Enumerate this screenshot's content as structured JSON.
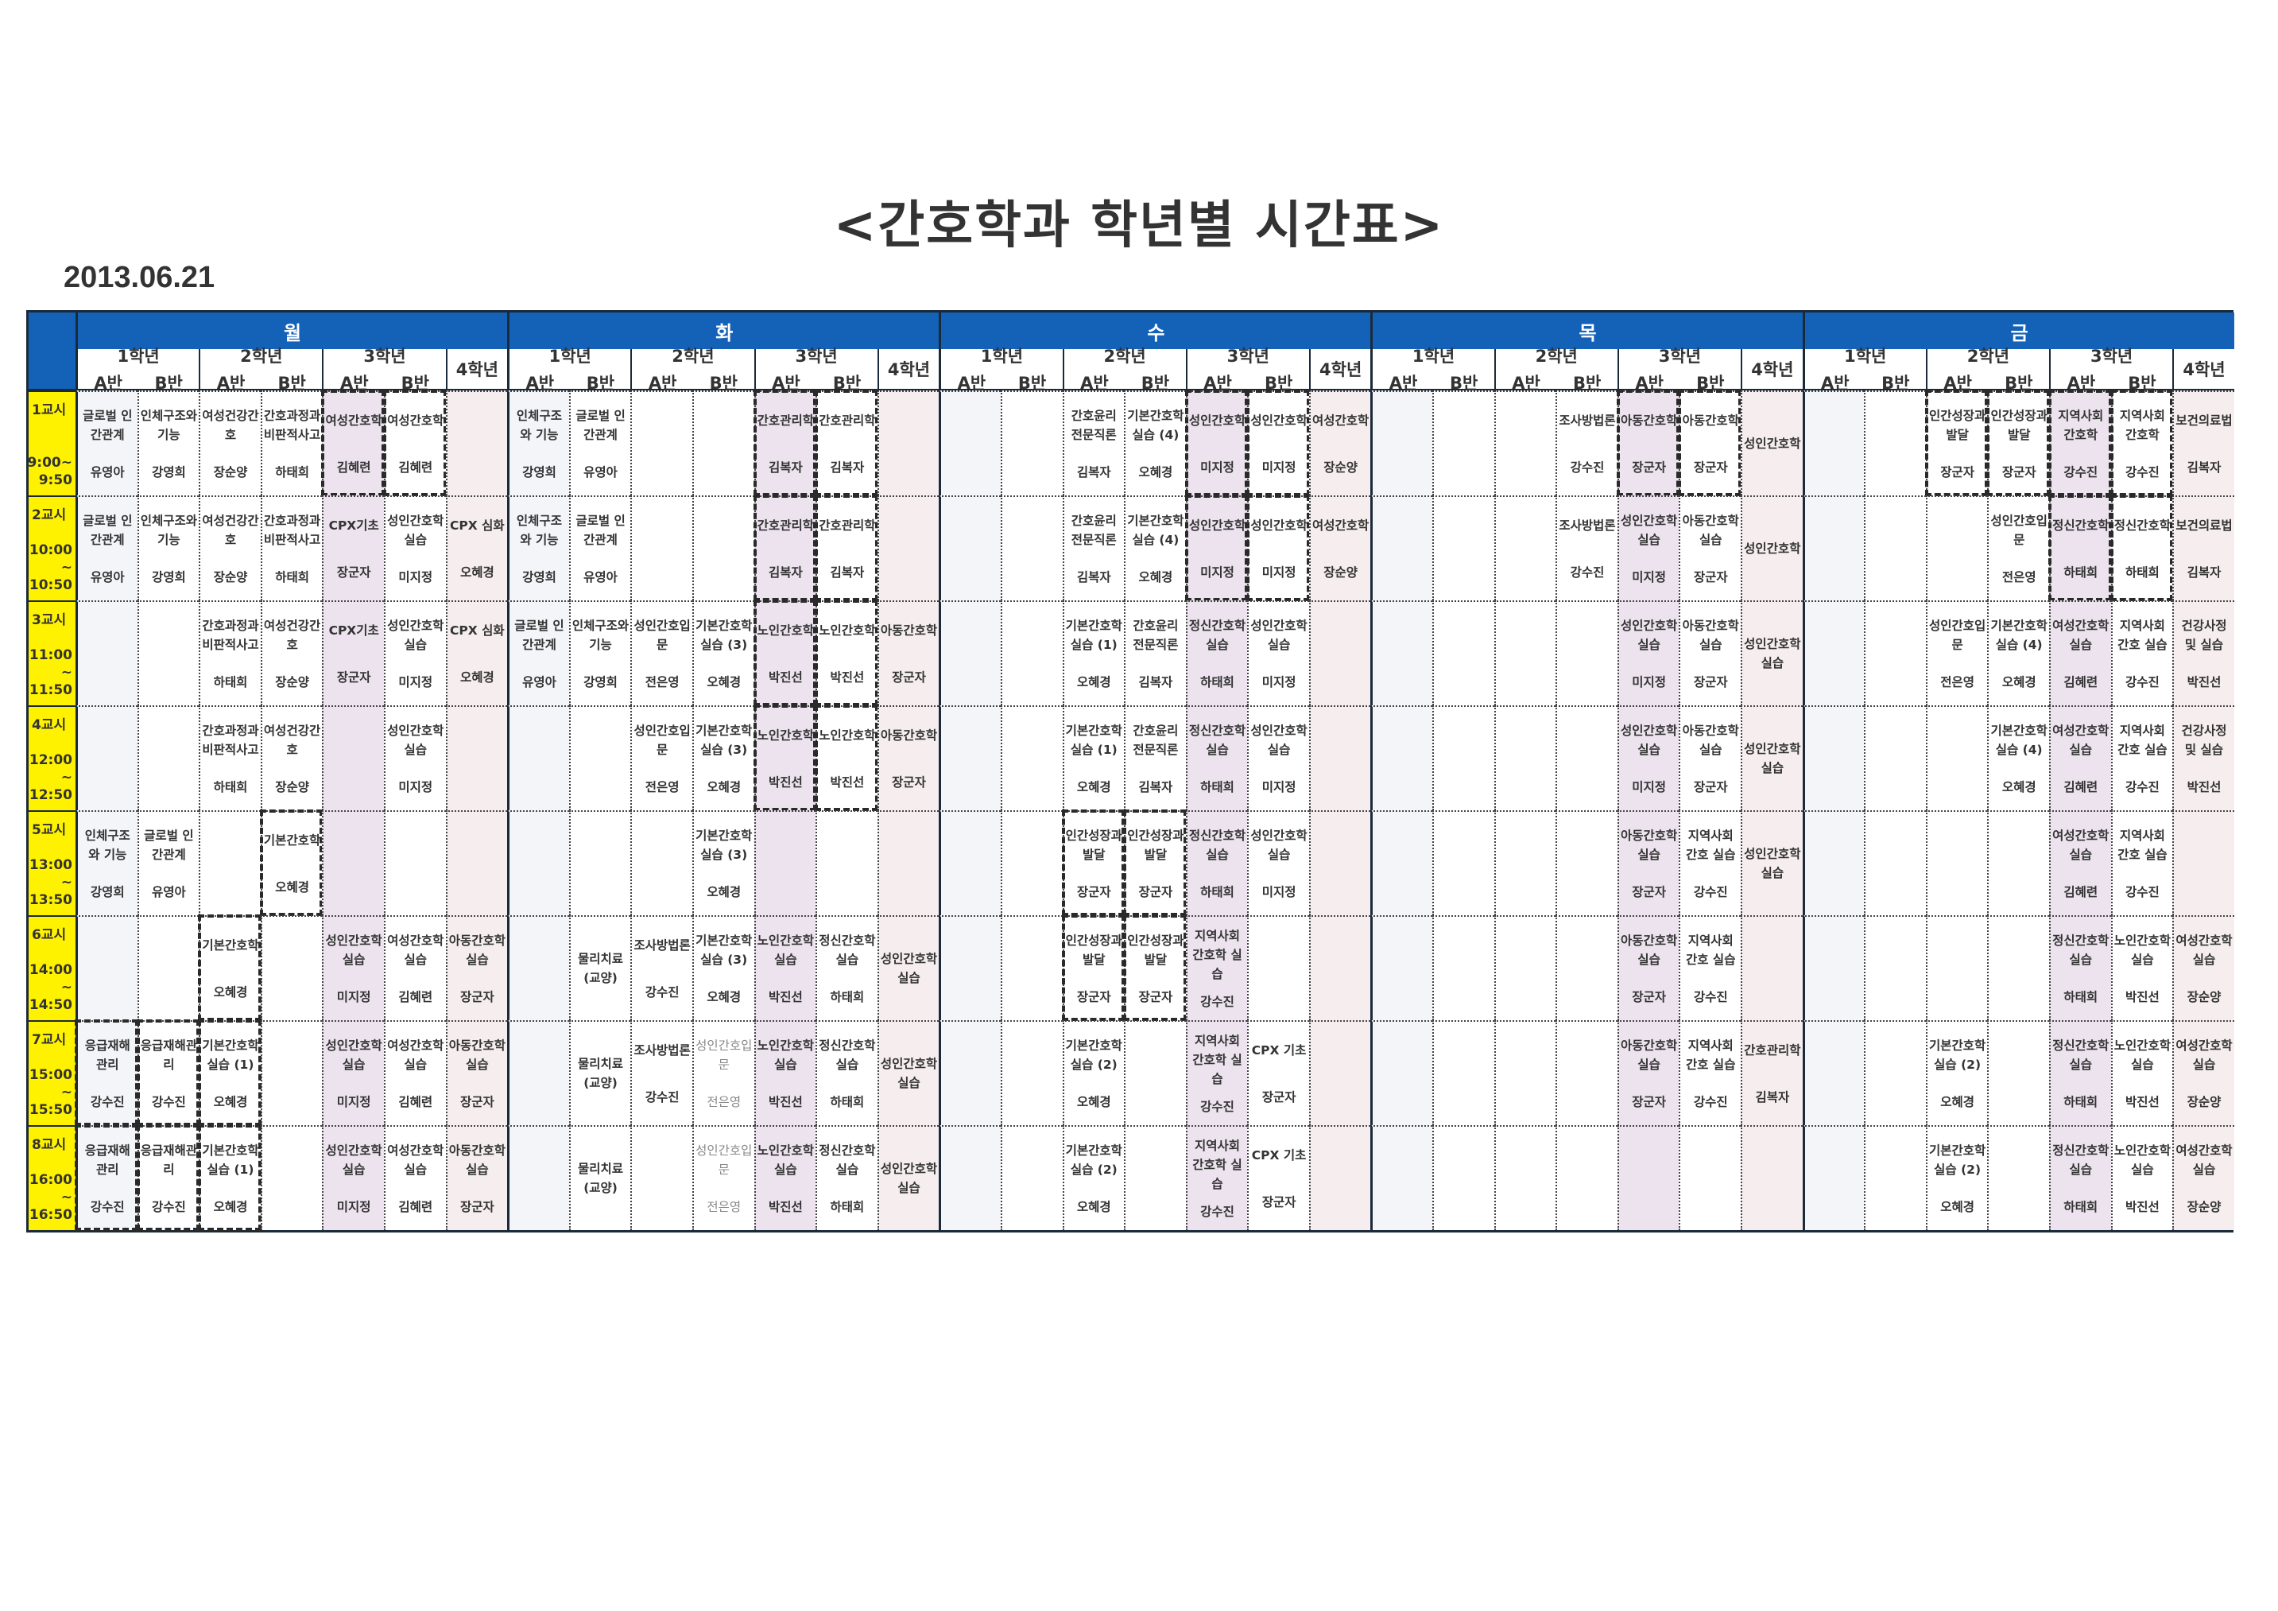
{
  "title": "<간호학과 학년별 시간표>",
  "date": "2013.06.21",
  "colors": {
    "header_blue": "#1462b8",
    "period_yellow": "#fff200",
    "grade3a_tint": "#ece3ee",
    "grade4_tint": "#f6eeee"
  },
  "grades": [
    {
      "label": "1학년",
      "classes": [
        "A반",
        "B반"
      ]
    },
    {
      "label": "2학년",
      "classes": [
        "A반",
        "B반"
      ]
    },
    {
      "label": "3학년",
      "classes": [
        "A반",
        "B반"
      ]
    },
    {
      "label": "4학년",
      "classes": []
    }
  ],
  "periods": [
    {
      "label": "1교시",
      "times": [
        "9:00~",
        "9:50"
      ]
    },
    {
      "label": "2교시",
      "times": [
        "10:00",
        "~",
        "10:50"
      ]
    },
    {
      "label": "3교시",
      "times": [
        "11:00",
        "~",
        "11:50"
      ]
    },
    {
      "label": "4교시",
      "times": [
        "12:00",
        "~",
        "12:50"
      ]
    },
    {
      "label": "5교시",
      "times": [
        "13:00",
        "~",
        "13:50"
      ]
    },
    {
      "label": "6교시",
      "times": [
        "14:00",
        "~",
        "14:50"
      ]
    },
    {
      "label": "7교시",
      "times": [
        "15:00",
        "~",
        "15:50"
      ]
    },
    {
      "label": "8교시",
      "times": [
        "16:00",
        "~",
        "16:50"
      ]
    }
  ],
  "days": [
    {
      "name": "월",
      "rows": [
        [
          {
            "subject": "글로벌 인간관계",
            "teacher": "유영아"
          },
          {
            "subject": "인체구조와 기능",
            "teacher": "강영희"
          },
          {
            "subject": "여성건강간호",
            "teacher": "장순양"
          },
          {
            "subject": "간호과정과 비판적사고",
            "teacher": "하태희"
          },
          {
            "subject": "여성간호학",
            "teacher": "김혜련",
            "boxed": true
          },
          {
            "subject": "여성간호학",
            "teacher": "김혜련",
            "boxed": true
          },
          null
        ],
        [
          {
            "subject": "글로벌 인간관계",
            "teacher": "유영아"
          },
          {
            "subject": "인체구조와 기능",
            "teacher": "강영희"
          },
          {
            "subject": "여성건강간호",
            "teacher": "장순양"
          },
          {
            "subject": "간호과정과 비판적사고",
            "teacher": "하태희"
          },
          {
            "subject": "CPX기초",
            "teacher": "장군자"
          },
          {
            "subject": "성인간호학 실습",
            "teacher": "미지정"
          },
          {
            "subject": "CPX 심화",
            "teacher": "오혜경"
          }
        ],
        [
          null,
          null,
          {
            "subject": "간호과정과 비판적사고",
            "teacher": "하태희"
          },
          {
            "subject": "여성건강간호",
            "teacher": "장순양"
          },
          {
            "subject": "CPX기초",
            "teacher": "장군자"
          },
          {
            "subject": "성인간호학 실습",
            "teacher": "미지정"
          },
          {
            "subject": "CPX 심화",
            "teacher": "오혜경"
          }
        ],
        [
          null,
          null,
          {
            "subject": "간호과정과 비판적사고",
            "teacher": "하태희"
          },
          {
            "subject": "여성건강간호",
            "teacher": "장순양"
          },
          null,
          {
            "subject": "성인간호학 실습",
            "teacher": "미지정"
          },
          null
        ],
        [
          {
            "subject": "인체구조와 기능",
            "teacher": "강영희"
          },
          {
            "subject": "글로벌 인간관계",
            "teacher": "유영아"
          },
          null,
          {
            "subject": "기본간호학",
            "teacher": "오혜경",
            "boxed": true
          },
          null,
          null,
          null
        ],
        [
          null,
          null,
          {
            "subject": "기본간호학",
            "teacher": "오혜경",
            "boxed": true
          },
          null,
          {
            "subject": "성인간호학 실습",
            "teacher": "미지정"
          },
          {
            "subject": "여성간호학 실습",
            "teacher": "김혜련"
          },
          {
            "subject": "아동간호학 실습",
            "teacher": "장군자"
          }
        ],
        [
          {
            "subject": "응급재해관리",
            "teacher": "강수진",
            "boxed": true
          },
          {
            "subject": "응급재해관리",
            "teacher": "강수진",
            "boxed": true
          },
          {
            "subject": "기본간호학 실습 (1)",
            "teacher": "오혜경",
            "boxed": true
          },
          null,
          {
            "subject": "성인간호학 실습",
            "teacher": "미지정"
          },
          {
            "subject": "여성간호학 실습",
            "teacher": "김혜련"
          },
          {
            "subject": "아동간호학 실습",
            "teacher": "장군자"
          }
        ],
        [
          {
            "subject": "응급재해관리",
            "teacher": "강수진",
            "boxed": true
          },
          {
            "subject": "응급재해관리",
            "teacher": "강수진",
            "boxed": true
          },
          {
            "subject": "기본간호학 실습 (1)",
            "teacher": "오혜경",
            "boxed": true
          },
          null,
          {
            "subject": "성인간호학 실습",
            "teacher": "미지정"
          },
          {
            "subject": "여성간호학 실습",
            "teacher": "김혜련"
          },
          {
            "subject": "아동간호학 실습",
            "teacher": "장군자"
          }
        ]
      ]
    },
    {
      "name": "화",
      "rows": [
        [
          {
            "subject": "인체구조와 기능",
            "teacher": "강영희"
          },
          {
            "subject": "글로벌 인간관계",
            "teacher": "유영아"
          },
          null,
          null,
          {
            "subject": "간호관리학",
            "teacher": "김복자",
            "boxed": true
          },
          {
            "subject": "간호관리학",
            "teacher": "김복자",
            "boxed": true
          },
          null
        ],
        [
          {
            "subject": "인체구조와 기능",
            "teacher": "강영희"
          },
          {
            "subject": "글로벌 인간관계",
            "teacher": "유영아"
          },
          null,
          null,
          {
            "subject": "간호관리학",
            "teacher": "김복자",
            "boxed": true
          },
          {
            "subject": "간호관리학",
            "teacher": "김복자",
            "boxed": true
          },
          null
        ],
        [
          {
            "subject": "글로벌 인간관계",
            "teacher": "유영아"
          },
          {
            "subject": "인체구조와 기능",
            "teacher": "강영희"
          },
          {
            "subject": "성인간호입문",
            "teacher": "전은영"
          },
          {
            "subject": "기본간호학 실습 (3)",
            "teacher": "오혜경"
          },
          {
            "subject": "노인간호학",
            "teacher": "박진선",
            "boxed": true
          },
          {
            "subject": "노인간호학",
            "teacher": "박진선",
            "boxed": true
          },
          {
            "subject": "아동간호학",
            "teacher": "장군자"
          }
        ],
        [
          null,
          null,
          {
            "subject": "성인간호입문",
            "teacher": "전은영"
          },
          {
            "subject": "기본간호학 실습 (3)",
            "teacher": "오혜경"
          },
          {
            "subject": "노인간호학",
            "teacher": "박진선",
            "boxed": true
          },
          {
            "subject": "노인간호학",
            "teacher": "박진선",
            "boxed": true
          },
          {
            "subject": "아동간호학",
            "teacher": "장군자"
          }
        ],
        [
          null,
          null,
          null,
          {
            "subject": "기본간호학 실습 (3)",
            "teacher": "오혜경"
          },
          null,
          null,
          null
        ],
        [
          null,
          {
            "subject": "물리치료 (교양)",
            "teacher": ""
          },
          {
            "subject": "조사방법론",
            "teacher": "강수진"
          },
          {
            "subject": "기본간호학 실습 (3)",
            "teacher": "오혜경"
          },
          {
            "subject": "노인간호학 실습",
            "teacher": "박진선"
          },
          {
            "subject": "정신간호학 실습",
            "teacher": "하태희"
          },
          {
            "subject": "성인간호학 실습",
            "teacher": ""
          }
        ],
        [
          null,
          {
            "subject": "물리치료 (교양)",
            "teacher": ""
          },
          {
            "subject": "조사방법론",
            "teacher": "강수진"
          },
          {
            "subject": "성인간호입문",
            "teacher": "전은영",
            "faint": true
          },
          {
            "subject": "노인간호학 실습",
            "teacher": "박진선"
          },
          {
            "subject": "정신간호학 실습",
            "teacher": "하태희"
          },
          {
            "subject": "성인간호학 실습",
            "teacher": ""
          }
        ],
        [
          null,
          {
            "subject": "물리치료 (교양)",
            "teacher": ""
          },
          null,
          {
            "subject": "성인간호입문",
            "teacher": "전은영",
            "faint": true
          },
          {
            "subject": "노인간호학 실습",
            "teacher": "박진선"
          },
          {
            "subject": "정신간호학 실습",
            "teacher": "하태희"
          },
          {
            "subject": "성인간호학 실습",
            "teacher": ""
          }
        ]
      ]
    },
    {
      "name": "수",
      "rows": [
        [
          null,
          null,
          {
            "subject": "간호윤리 전문직론",
            "teacher": "김복자"
          },
          {
            "subject": "기본간호학 실습 (4)",
            "teacher": "오혜경"
          },
          {
            "subject": "성인간호학",
            "teacher": "미지정",
            "boxed": true
          },
          {
            "subject": "성인간호학",
            "teacher": "미지정",
            "boxed": true
          },
          {
            "subject": "여성간호학",
            "teacher": "장순양"
          }
        ],
        [
          null,
          null,
          {
            "subject": "간호윤리 전문직론",
            "teacher": "김복자"
          },
          {
            "subject": "기본간호학 실습 (4)",
            "teacher": "오혜경"
          },
          {
            "subject": "성인간호학",
            "teacher": "미지정",
            "boxed": true
          },
          {
            "subject": "성인간호학",
            "teacher": "미지정",
            "boxed": true
          },
          {
            "subject": "여성간호학",
            "teacher": "장순양"
          }
        ],
        [
          null,
          null,
          {
            "subject": "기본간호학 실습 (1)",
            "teacher": "오혜경"
          },
          {
            "subject": "간호윤리 전문직론",
            "teacher": "김복자"
          },
          {
            "subject": "정신간호학 실습",
            "teacher": "하태희"
          },
          {
            "subject": "성인간호학 실습",
            "teacher": "미지정"
          },
          null
        ],
        [
          null,
          null,
          {
            "subject": "기본간호학 실습 (1)",
            "teacher": "오혜경"
          },
          {
            "subject": "간호윤리 전문직론",
            "teacher": "김복자"
          },
          {
            "subject": "정신간호학 실습",
            "teacher": "하태희"
          },
          {
            "subject": "성인간호학 실습",
            "teacher": "미지정"
          },
          null
        ],
        [
          null,
          null,
          {
            "subject": "인간성장과 발달",
            "teacher": "장군자",
            "boxed": true
          },
          {
            "subject": "인간성장과 발달",
            "teacher": "장군자",
            "boxed": true
          },
          {
            "subject": "정신간호학 실습",
            "teacher": "하태희"
          },
          {
            "subject": "성인간호학 실습",
            "teacher": "미지정"
          },
          null
        ],
        [
          null,
          null,
          {
            "subject": "인간성장과 발달",
            "teacher": "장군자",
            "boxed": true
          },
          {
            "subject": "인간성장과 발달",
            "teacher": "장군자",
            "boxed": true
          },
          {
            "subject": "지역사회 간호학 실습",
            "teacher": "강수진"
          },
          null,
          null
        ],
        [
          null,
          null,
          {
            "subject": "기본간호학 실습 (2)",
            "teacher": "오혜경"
          },
          null,
          {
            "subject": "지역사회 간호학 실습",
            "teacher": "강수진"
          },
          {
            "subject": "CPX 기초",
            "teacher": "장군자"
          },
          null
        ],
        [
          null,
          null,
          {
            "subject": "기본간호학 실습 (2)",
            "teacher": "오혜경"
          },
          null,
          {
            "subject": "지역사회 간호학 실습",
            "teacher": "강수진"
          },
          {
            "subject": "CPX 기초",
            "teacher": "장군자"
          },
          null
        ]
      ]
    },
    {
      "name": "목",
      "rows": [
        [
          null,
          null,
          null,
          {
            "subject": "조사방법론",
            "teacher": "강수진"
          },
          {
            "subject": "아동간호학",
            "teacher": "장군자",
            "boxed": true
          },
          {
            "subject": "아동간호학",
            "teacher": "장군자",
            "boxed": true
          },
          {
            "subject": "성인간호학",
            "teacher": ""
          }
        ],
        [
          null,
          null,
          null,
          {
            "subject": "조사방법론",
            "teacher": "강수진"
          },
          {
            "subject": "성인간호학 실습",
            "teacher": "미지정"
          },
          {
            "subject": "아동간호학 실습",
            "teacher": "장군자"
          },
          {
            "subject": "성인간호학",
            "teacher": ""
          }
        ],
        [
          null,
          null,
          null,
          null,
          {
            "subject": "성인간호학 실습",
            "teacher": "미지정"
          },
          {
            "subject": "아동간호학 실습",
            "teacher": "장군자"
          },
          {
            "subject": "성인간호학 실습",
            "teacher": ""
          }
        ],
        [
          null,
          null,
          null,
          null,
          {
            "subject": "성인간호학 실습",
            "teacher": "미지정"
          },
          {
            "subject": "아동간호학 실습",
            "teacher": "장군자"
          },
          {
            "subject": "성인간호학 실습",
            "teacher": ""
          }
        ],
        [
          null,
          null,
          null,
          null,
          {
            "subject": "아동간호학 실습",
            "teacher": "장군자"
          },
          {
            "subject": "지역사회 간호 실습",
            "teacher": "강수진"
          },
          {
            "subject": "성인간호학 실습",
            "teacher": ""
          }
        ],
        [
          null,
          null,
          null,
          null,
          {
            "subject": "아동간호학 실습",
            "teacher": "장군자"
          },
          {
            "subject": "지역사회 간호 실습",
            "teacher": "강수진"
          },
          null
        ],
        [
          null,
          null,
          null,
          null,
          {
            "subject": "아동간호학 실습",
            "teacher": "장군자"
          },
          {
            "subject": "지역사회 간호 실습",
            "teacher": "강수진"
          },
          {
            "subject": "간호관리학",
            "teacher": "김복자"
          }
        ],
        [
          null,
          null,
          null,
          null,
          null,
          null,
          null
        ]
      ]
    },
    {
      "name": "금",
      "rows": [
        [
          null,
          null,
          {
            "subject": "인간성장과 발달",
            "teacher": "장군자",
            "boxed": true
          },
          {
            "subject": "인간성장과 발달",
            "teacher": "장군자",
            "boxed": true
          },
          {
            "subject": "지역사회 간호학",
            "teacher": "강수진",
            "boxed": true
          },
          {
            "subject": "지역사회 간호학",
            "teacher": "강수진",
            "boxed": true
          },
          {
            "subject": "보건의료법",
            "teacher": "김복자"
          }
        ],
        [
          null,
          null,
          null,
          {
            "subject": "성인간호입문",
            "teacher": "전은영"
          },
          {
            "subject": "정신간호학",
            "teacher": "하태희",
            "boxed": true
          },
          {
            "subject": "정신간호학",
            "teacher": "하태희",
            "boxed": true
          },
          {
            "subject": "보건의료법",
            "teacher": "김복자"
          }
        ],
        [
          null,
          null,
          {
            "subject": "성인간호입문",
            "teacher": "전은영"
          },
          {
            "subject": "기본간호학 실습 (4)",
            "teacher": "오혜경"
          },
          {
            "subject": "여성간호학 실습",
            "teacher": "김혜련"
          },
          {
            "subject": "지역사회 간호 실습",
            "teacher": "강수진"
          },
          {
            "subject": "건강사정 및 실습",
            "teacher": "박진선"
          }
        ],
        [
          null,
          null,
          null,
          {
            "subject": "기본간호학 실습 (4)",
            "teacher": "오혜경"
          },
          {
            "subject": "여성간호학 실습",
            "teacher": "김혜련"
          },
          {
            "subject": "지역사회 간호 실습",
            "teacher": "강수진"
          },
          {
            "subject": "건강사정 및 실습",
            "teacher": "박진선"
          }
        ],
        [
          null,
          null,
          null,
          null,
          {
            "subject": "여성간호학 실습",
            "teacher": "김혜련"
          },
          {
            "subject": "지역사회 간호 실습",
            "teacher": "강수진"
          },
          null
        ],
        [
          null,
          null,
          null,
          null,
          {
            "subject": "정신간호학 실습",
            "teacher": "하태희"
          },
          {
            "subject": "노인간호학 실습",
            "teacher": "박진선"
          },
          {
            "subject": "여성간호학 실습",
            "teacher": "장순양"
          }
        ],
        [
          null,
          null,
          {
            "subject": "기본간호학 실습 (2)",
            "teacher": "오혜경"
          },
          null,
          {
            "subject": "정신간호학 실습",
            "teacher": "하태희"
          },
          {
            "subject": "노인간호학 실습",
            "teacher": "박진선"
          },
          {
            "subject": "여성간호학 실습",
            "teacher": "장순양"
          }
        ],
        [
          null,
          null,
          {
            "subject": "기본간호학 실습 (2)",
            "teacher": "오혜경"
          },
          null,
          {
            "subject": "정신간호학 실습",
            "teacher": "하태희"
          },
          {
            "subject": "노인간호학 실습",
            "teacher": "박진선"
          },
          {
            "subject": "여성간호학 실습",
            "teacher": "장순양"
          }
        ]
      ]
    }
  ]
}
